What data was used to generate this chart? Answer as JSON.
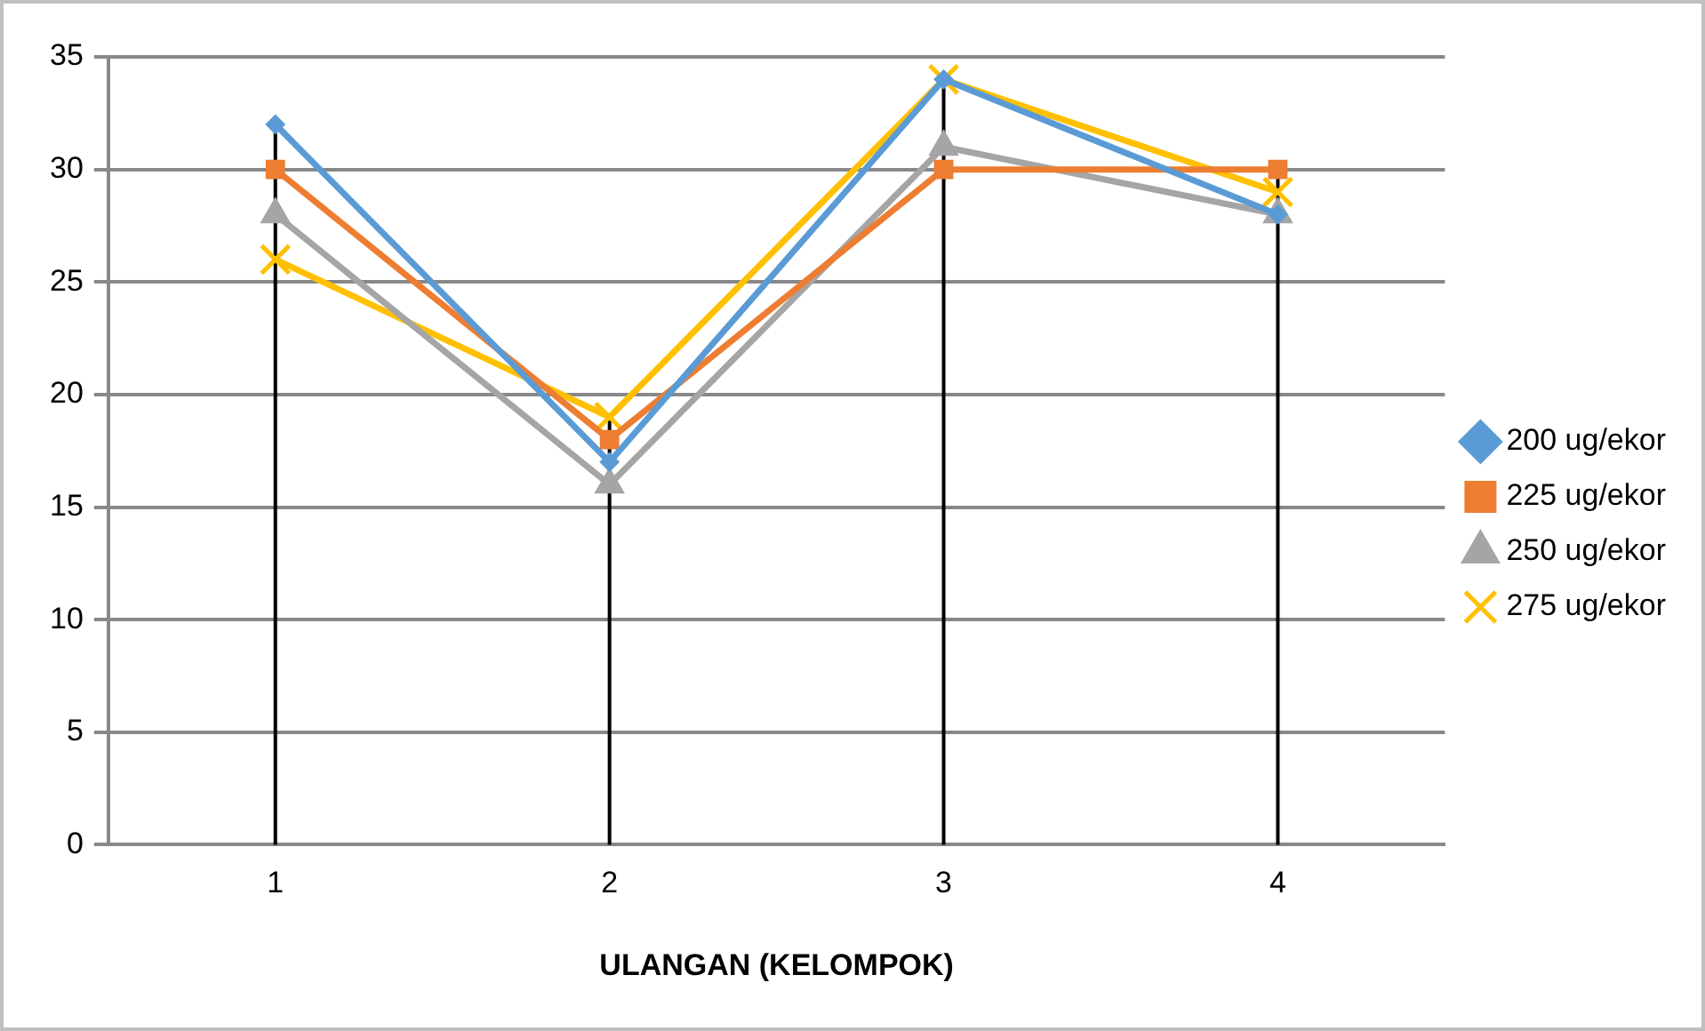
{
  "chart_data": {
    "type": "line",
    "xlabel": "ULANGAN (KELOMPOK)",
    "categories": [
      "1",
      "2",
      "3",
      "4"
    ],
    "series": [
      {
        "name": "200 ug/ekor",
        "color": "#5b9bd5",
        "marker": "diamond",
        "values": [
          32,
          17,
          34,
          28
        ]
      },
      {
        "name": "225 ug/ekor",
        "color": "#ed7d31",
        "marker": "square",
        "values": [
          30,
          18,
          30,
          30
        ]
      },
      {
        "name": "250 ug/ekor",
        "color": "#a5a5a5",
        "marker": "triangle",
        "values": [
          28,
          16,
          31,
          28
        ]
      },
      {
        "name": "275 ug/ekor",
        "color": "#ffc000",
        "marker": "cross",
        "values": [
          26,
          19,
          34,
          29
        ]
      }
    ],
    "ylim": [
      0,
      35
    ],
    "yticks": [
      0,
      5,
      10,
      15,
      20,
      25,
      30,
      35
    ],
    "grid": "y",
    "legend": "right",
    "ref_lines": [
      {
        "axis": "x",
        "value": "1",
        "color": "#000000"
      },
      {
        "axis": "x",
        "value": "2",
        "color": "#000000"
      },
      {
        "axis": "x",
        "value": "3",
        "color": "#000000"
      },
      {
        "axis": "x",
        "value": "4",
        "color": "#000000"
      }
    ]
  }
}
